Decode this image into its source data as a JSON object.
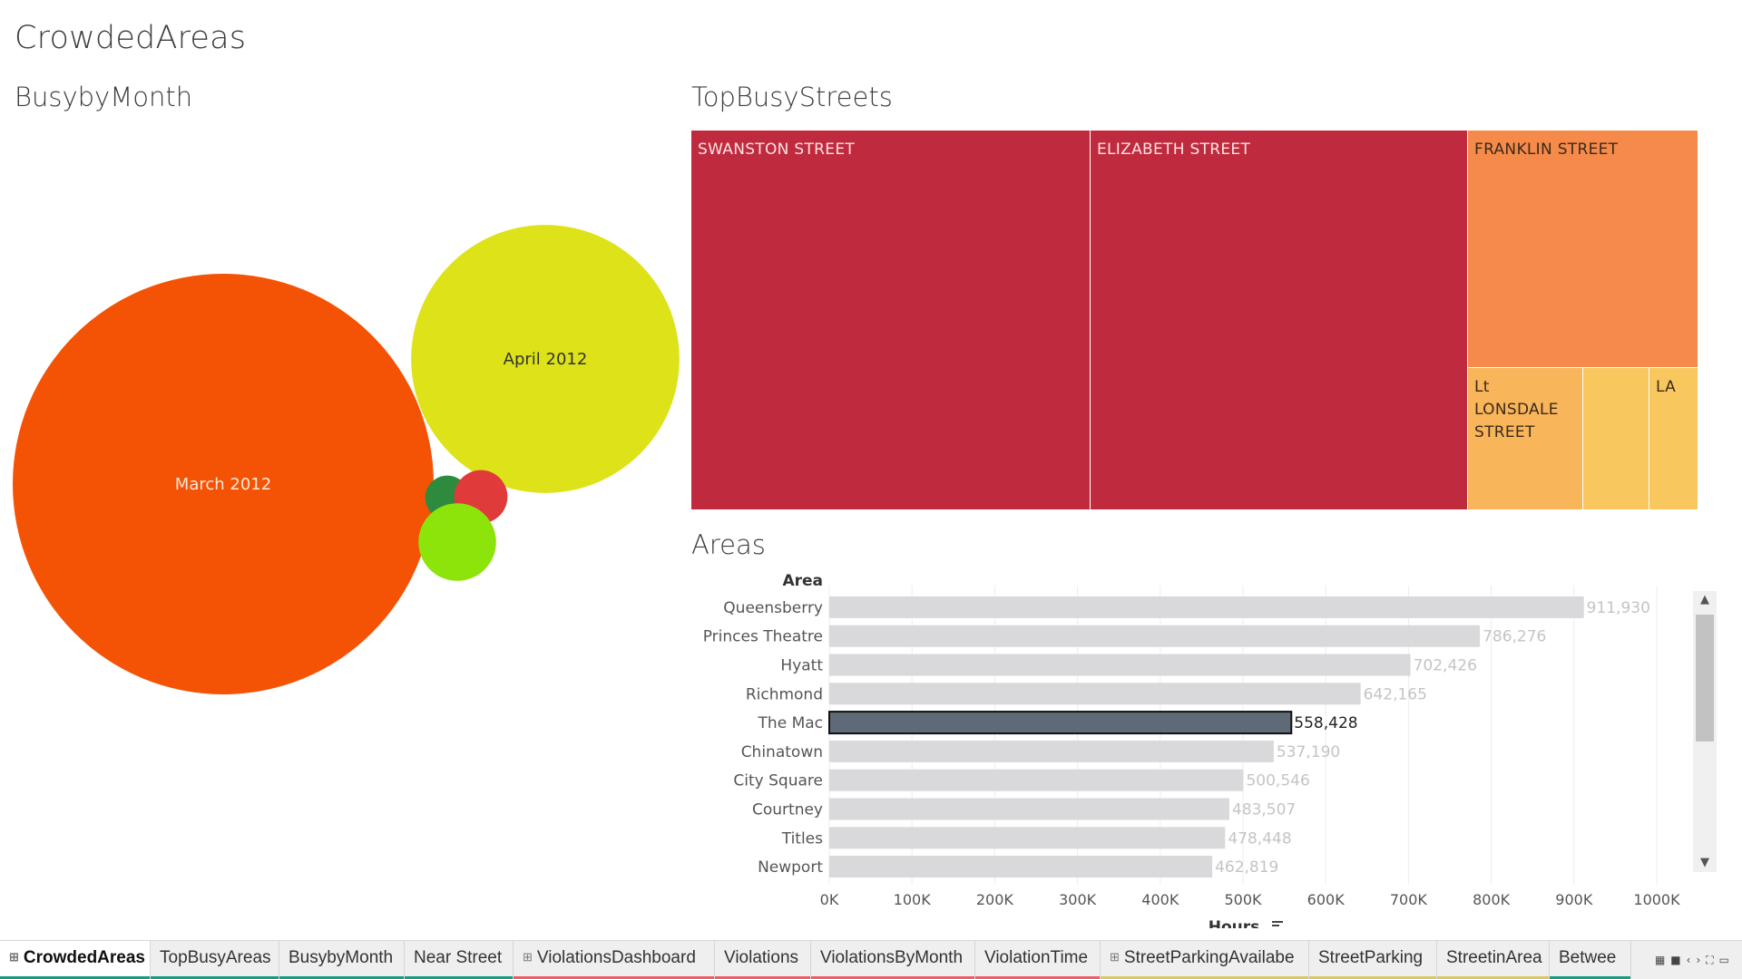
{
  "dashboard": {
    "title": "CrowdedAreas"
  },
  "sheets": {
    "month_title": "BusybyMonth",
    "streets_title": "TopBusyStreets",
    "areas_title": "Areas"
  },
  "colors": {
    "march": "#f45205",
    "april": "#dee218",
    "dark_green": "#2e8b3e",
    "red": "#e03a3a",
    "light_green": "#8de40b",
    "tile_dark_red": "#c02a3e",
    "tile_orange": "#f68a4a",
    "tile_light_orange": "#f8b55a",
    "tile_yellow": "#f8c85e",
    "bar_default": "#d9d9db",
    "bar_selected": "#5f6a78",
    "label_faded": "#c4c4c4"
  },
  "chart_data": [
    {
      "type": "bubble",
      "name": "BusybyMonth",
      "title": "BusybyMonth",
      "bubbles": [
        {
          "label": "March 2012",
          "size": 1.0,
          "color": "#f45205",
          "text_color": "#ffe8d8"
        },
        {
          "label": "April 2012",
          "size": 0.406,
          "color": "#dee218",
          "text_color": "#333333"
        },
        {
          "label": "",
          "size": 0.011,
          "color": "#2e8b3e"
        },
        {
          "label": "",
          "size": 0.016,
          "color": "#e03a3a"
        },
        {
          "label": "",
          "size": 0.034,
          "color": "#8de40b"
        }
      ]
    },
    {
      "type": "treemap",
      "name": "TopBusyStreets",
      "title": "TopBusyStreets",
      "tiles": [
        {
          "label": "SWANSTON STREET",
          "color": "#c02a3e",
          "text": "light"
        },
        {
          "label": "ELIZABETH STREET",
          "color": "#c02a3e",
          "text": "light"
        },
        {
          "label": "FRANKLIN STREET",
          "color": "#f68a4a",
          "text": "dark"
        },
        {
          "label": "Lt LONSDALE STREET",
          "color": "#f8b55a",
          "text": "dark"
        },
        {
          "label": "",
          "color": "#f8c85e",
          "text": "dark"
        },
        {
          "label": "LA",
          "color": "#f8c85e",
          "text": "dark"
        }
      ]
    },
    {
      "type": "bar",
      "name": "Areas",
      "title": "Areas",
      "row_header": "Area",
      "xlabel": "Hours",
      "xlim": [
        0,
        1000000
      ],
      "xticks": [
        {
          "value": 0,
          "label": "0K"
        },
        {
          "value": 100000,
          "label": "100K"
        },
        {
          "value": 200000,
          "label": "200K"
        },
        {
          "value": 300000,
          "label": "300K"
        },
        {
          "value": 400000,
          "label": "400K"
        },
        {
          "value": 500000,
          "label": "500K"
        },
        {
          "value": 600000,
          "label": "600K"
        },
        {
          "value": 700000,
          "label": "700K"
        },
        {
          "value": 800000,
          "label": "800K"
        },
        {
          "value": 900000,
          "label": "900K"
        },
        {
          "value": 1000000,
          "label": "1000K"
        }
      ],
      "categories": [
        "Queensberry",
        "Princes Theatre",
        "Hyatt",
        "Richmond",
        "The Mac",
        "Chinatown",
        "City Square",
        "Courtney",
        "Titles",
        "Newport"
      ],
      "values": [
        911930,
        786276,
        702426,
        642165,
        558428,
        537190,
        500546,
        483507,
        478448,
        462819
      ],
      "value_labels": [
        "911,930",
        "786,276",
        "702,426",
        "642,165",
        "558,428",
        "537,190",
        "500,546",
        "483,507",
        "478,448",
        "462,819"
      ],
      "selected": "The Mac",
      "grid": true
    }
  ],
  "tabs": [
    {
      "label": "CrowdedAreas",
      "icon": "dashboard-icon",
      "active": true,
      "color": "#1a9c7c"
    },
    {
      "label": "TopBusyAreas",
      "icon": "",
      "active": false,
      "color": "#1a9c7c"
    },
    {
      "label": "BusybyMonth",
      "icon": "",
      "active": false,
      "color": "#1a9c7c"
    },
    {
      "label": "Near Street",
      "icon": "",
      "active": false,
      "color": "#1a9c7c"
    },
    {
      "label": "ViolationsDashboard",
      "icon": "dashboard-icon",
      "active": false,
      "color": "#e8606a"
    },
    {
      "label": "Violations",
      "icon": "",
      "active": false,
      "color": "#e8606a"
    },
    {
      "label": "ViolationsByMonth",
      "icon": "",
      "active": false,
      "color": "#e8606a"
    },
    {
      "label": "ViolationTime",
      "icon": "",
      "active": false,
      "color": "#e8606a"
    },
    {
      "label": "StreetParkingAvailabe",
      "icon": "dashboard-icon",
      "active": false,
      "color": "#d8c86a"
    },
    {
      "label": "StreetParking",
      "icon": "",
      "active": false,
      "color": "#d8c86a"
    },
    {
      "label": "StreetinArea",
      "icon": "",
      "active": false,
      "color": "#d8c86a"
    },
    {
      "label": "Betwee",
      "icon": "",
      "active": false,
      "color": "#1a9c7c"
    }
  ]
}
